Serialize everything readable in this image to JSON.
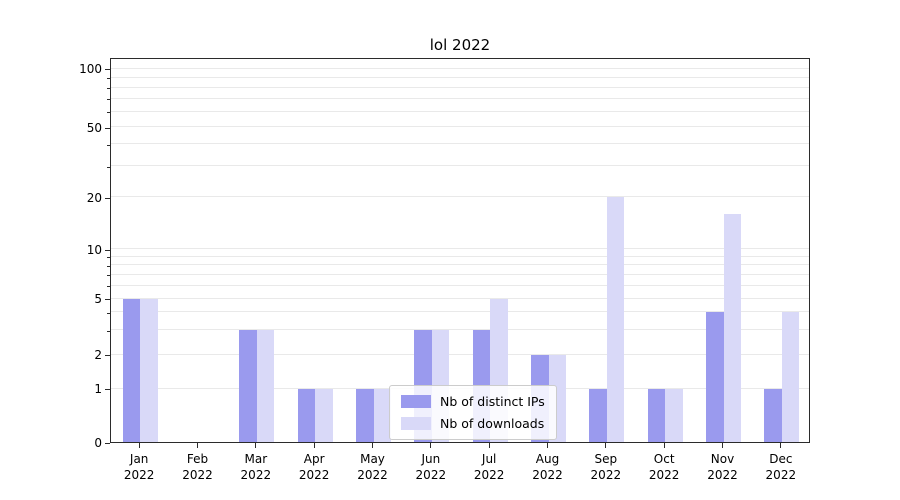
{
  "chart_data": {
    "type": "bar",
    "title": "lol 2022",
    "categories": [
      "Jan 2022",
      "Feb 2022",
      "Mar 2022",
      "Apr 2022",
      "May 2022",
      "Jun 2022",
      "Jul 2022",
      "Aug 2022",
      "Sep 2022",
      "Oct 2022",
      "Nov 2022",
      "Dec 2022"
    ],
    "series": [
      {
        "name": "Nb of distinct IPs",
        "color": "#9a9aee",
        "values": [
          5,
          0,
          3,
          1,
          1,
          3,
          3,
          2,
          1,
          1,
          4,
          1
        ]
      },
      {
        "name": "Nb of downloads",
        "color": "#d9d9f8",
        "values": [
          5,
          0,
          3,
          1,
          1,
          3,
          5,
          2,
          20,
          1,
          16,
          4
        ]
      }
    ],
    "yticks": [
      0,
      1,
      2,
      5,
      10,
      20,
      50,
      100
    ],
    "ylim": [
      0,
      110
    ],
    "scale": "symlog",
    "grid": "horizontal-minor",
    "legend_position": "lower center",
    "xlabel": "",
    "ylabel": ""
  }
}
